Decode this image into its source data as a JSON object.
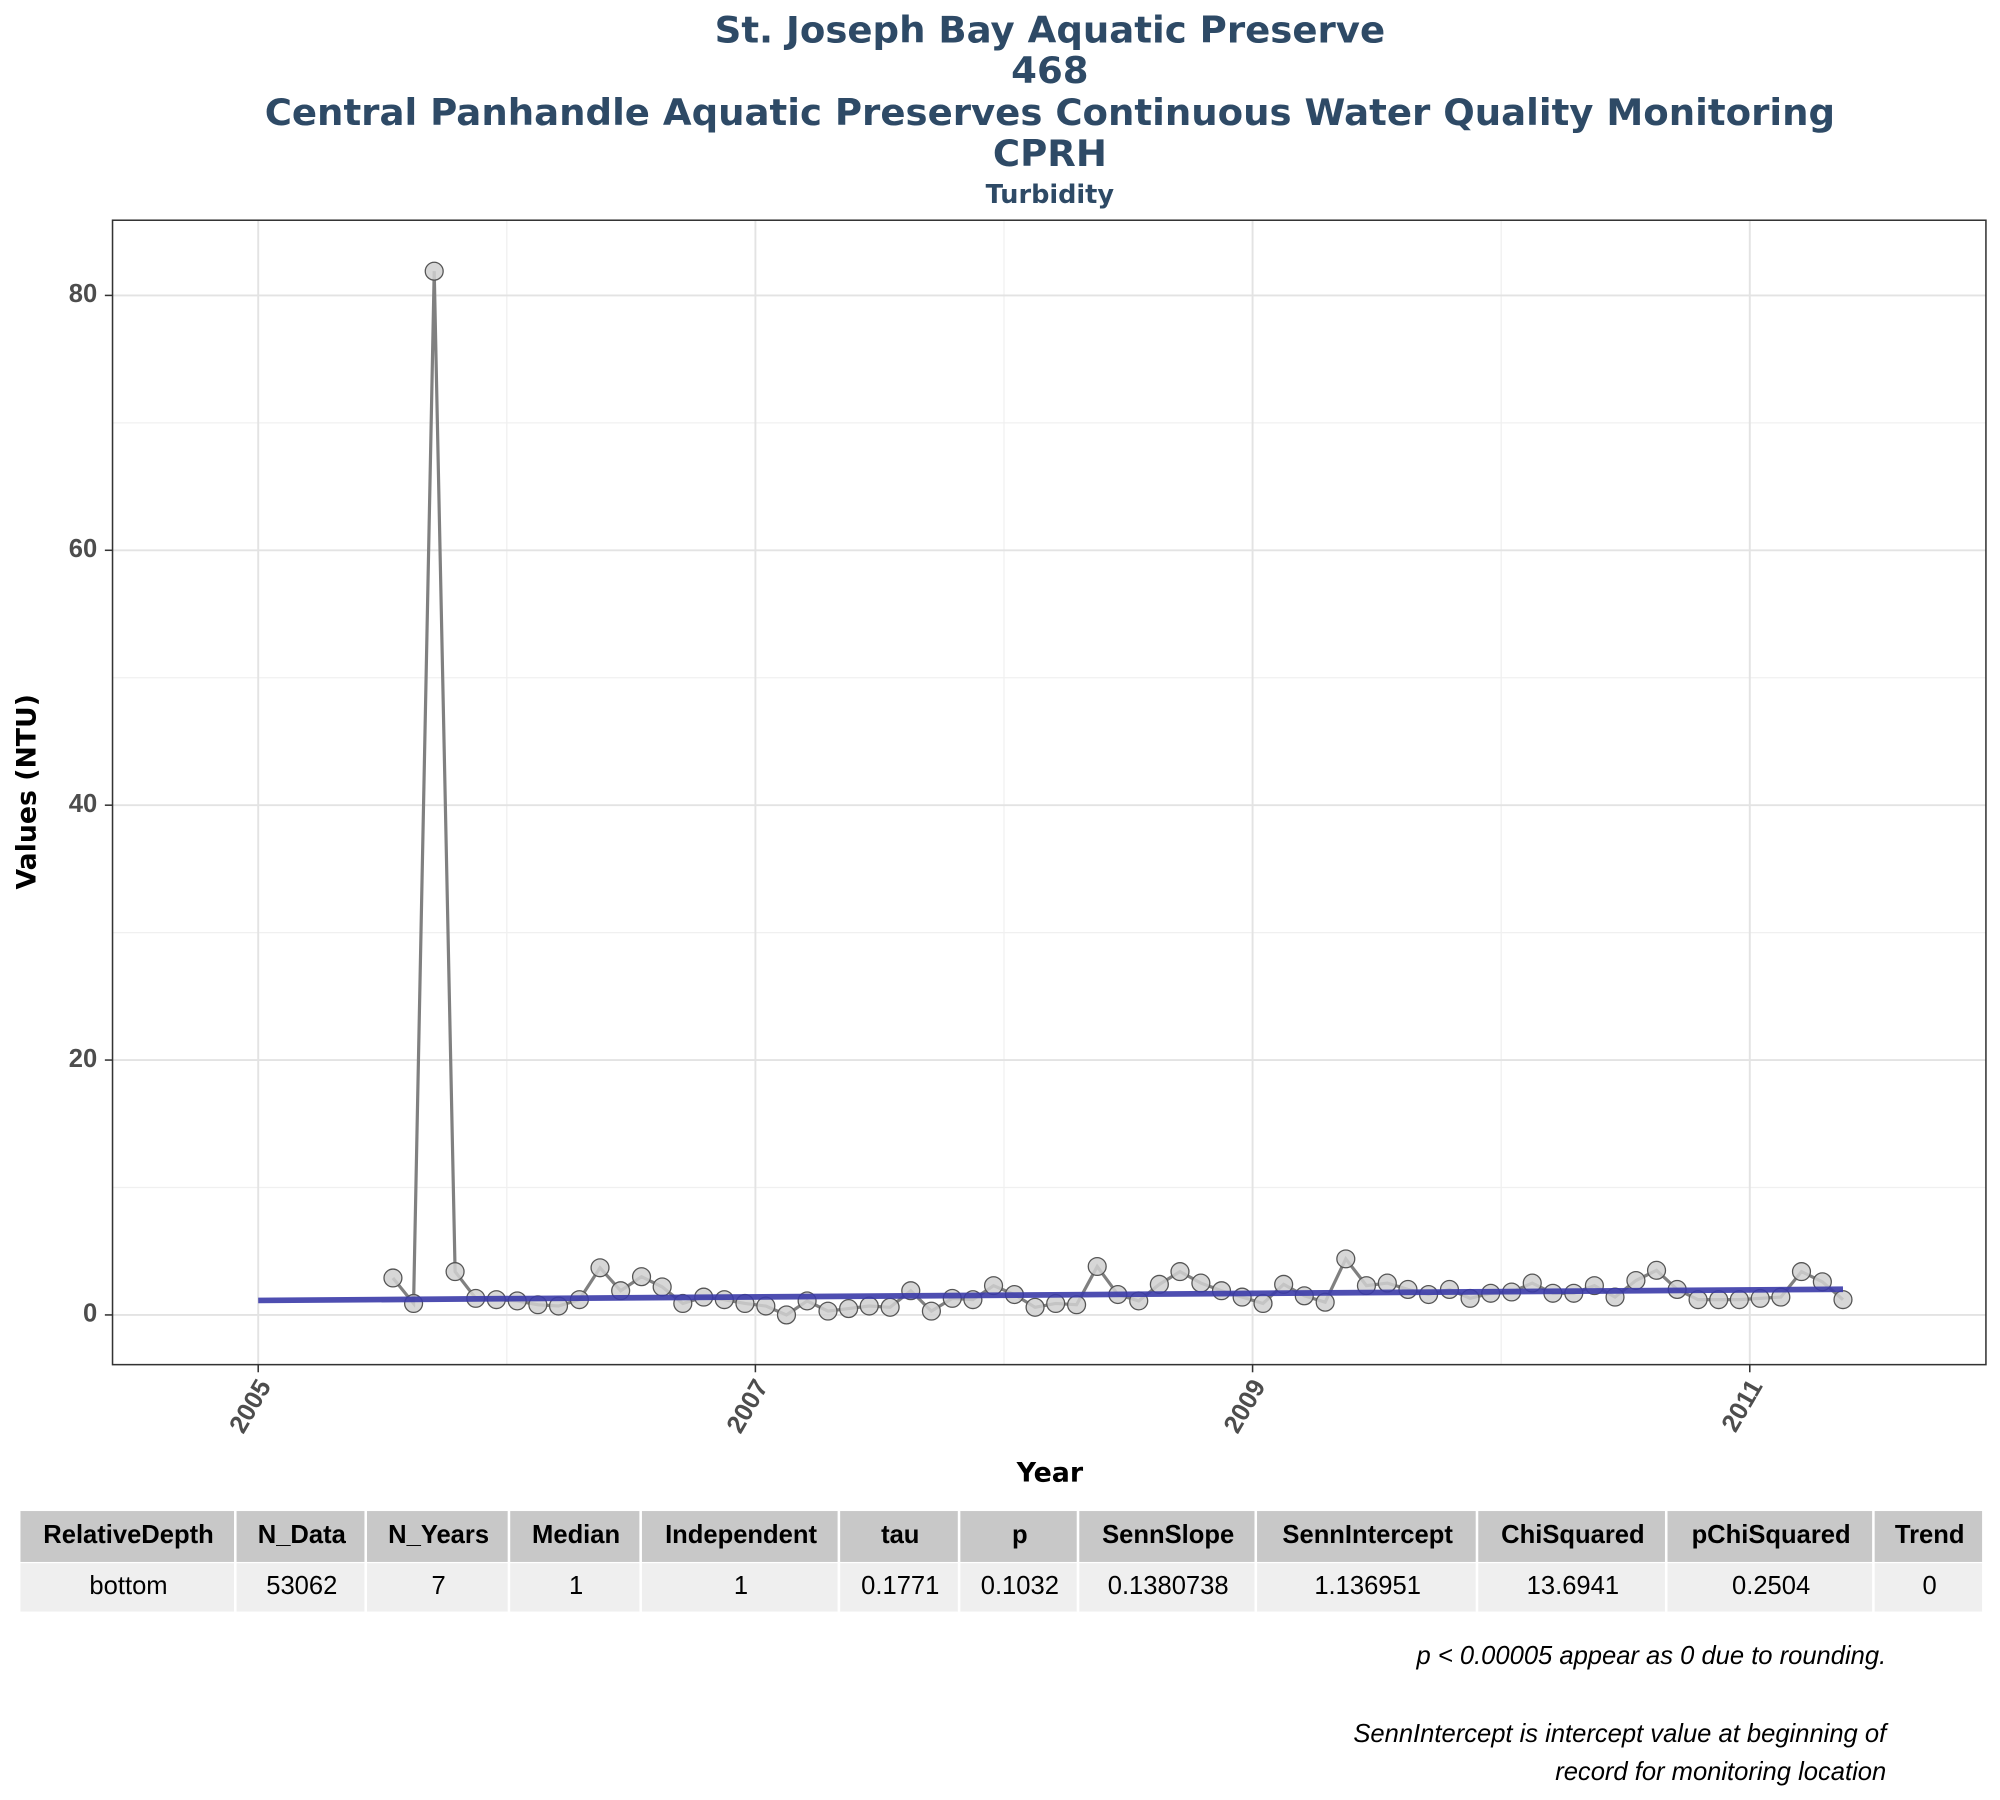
{
  "chart_data": {
    "type": "line",
    "title": [
      "St. Joseph Bay Aquatic Preserve",
      "468",
      "Central Panhandle Aquatic Preserves Continuous Water Quality Monitoring",
      "CPRH"
    ],
    "subtitle": "Turbidity",
    "x_label": "Year",
    "y_label": "Values (NTU)",
    "xlim": [
      2004.414,
      2011.95
    ],
    "ylim": [
      -3.9,
      85.9
    ],
    "xticks": [
      2005,
      2007,
      2009,
      2011
    ],
    "yticks": [
      0,
      20,
      40,
      60,
      80
    ],
    "x_minor_grid": [
      2006,
      2008,
      2010
    ],
    "y_minor_grid": [
      10,
      30,
      50,
      70
    ],
    "grid": true,
    "x": [
      2005.542,
      2005.625,
      2005.708,
      2005.792,
      2005.875,
      2005.958,
      2006.042,
      2006.125,
      2006.208,
      2006.292,
      2006.375,
      2006.458,
      2006.542,
      2006.625,
      2006.708,
      2006.792,
      2006.875,
      2006.958,
      2007.042,
      2007.125,
      2007.208,
      2007.292,
      2007.375,
      2007.458,
      2007.542,
      2007.625,
      2007.708,
      2007.792,
      2007.875,
      2007.958,
      2008.042,
      2008.125,
      2008.208,
      2008.292,
      2008.375,
      2008.458,
      2008.542,
      2008.625,
      2008.708,
      2008.792,
      2008.875,
      2008.958,
      2009.042,
      2009.125,
      2009.208,
      2009.292,
      2009.375,
      2009.458,
      2009.542,
      2009.625,
      2009.708,
      2009.792,
      2009.875,
      2009.958,
      2010.042,
      2010.125,
      2010.208,
      2010.292,
      2010.375,
      2010.458,
      2010.542,
      2010.625,
      2010.708,
      2010.792,
      2010.875,
      2010.958,
      2011.042,
      2011.125,
      2011.208,
      2011.292,
      2011.375
    ],
    "series": [
      {
        "color": "#808080",
        "marker_color": "#d0d0d0",
        "values": [
          2.9,
          0.9,
          81.9,
          3.4,
          1.3,
          1.2,
          1.1,
          0.8,
          0.7,
          1.2,
          3.7,
          1.9,
          3.0,
          2.2,
          0.9,
          1.4,
          1.2,
          0.9,
          0.7,
          0.0,
          1.1,
          0.3,
          0.5,
          0.7,
          0.6,
          1.9,
          0.3,
          1.3,
          1.2,
          2.3,
          1.6,
          0.6,
          0.9,
          0.8,
          3.8,
          1.6,
          1.1,
          2.4,
          3.4,
          2.5,
          1.9,
          1.4,
          0.9,
          2.4,
          1.5,
          1.0,
          4.4,
          2.3,
          2.5,
          2.0,
          1.6,
          2.0,
          1.3,
          1.7,
          1.8,
          2.5,
          1.7,
          1.7,
          2.3,
          1.4,
          2.7,
          3.5,
          2.0,
          1.2,
          1.2,
          1.2,
          1.3,
          1.4,
          3.4,
          2.6,
          1.2
        ]
      }
    ],
    "trend": {
      "color": "#3b3ba8",
      "x": [
        2005,
        2011.375
      ],
      "values": [
        1.137,
        2.017
      ]
    }
  },
  "table": {
    "columns": [
      "RelativeDepth",
      "N_Data",
      "N_Years",
      "Median",
      "Independent",
      "tau",
      "p",
      "SennSlope",
      "SennIntercept",
      "ChiSquared",
      "pChiSquared",
      "Trend"
    ],
    "rows": [
      [
        "bottom",
        "53062",
        "7",
        "1",
        "1",
        "0.1771",
        "0.1032",
        "0.1380738",
        "1.136951",
        "13.6941",
        "0.2504",
        "0"
      ]
    ]
  },
  "notes": [
    "p < 0.00005 appear as 0 due to rounding.",
    "SennIntercept is intercept value at beginning of",
    "record for monitoring location"
  ]
}
